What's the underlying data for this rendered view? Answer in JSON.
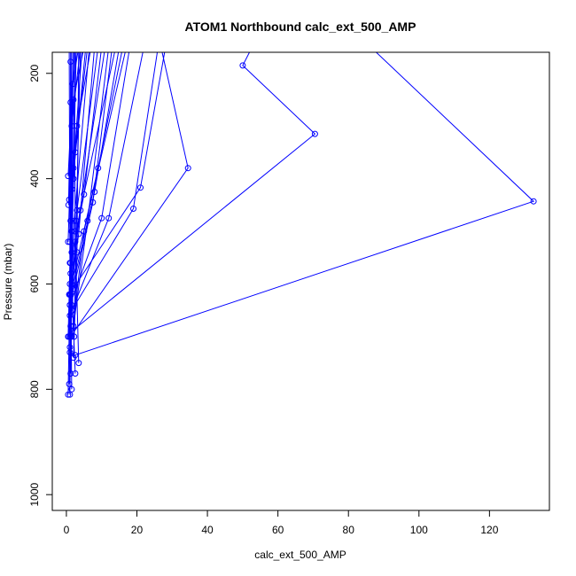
{
  "chart_data": {
    "type": "line",
    "title": "ATOM1 Northbound calc_ext_500_AMP",
    "xlabel": "calc_ext_500_AMP",
    "ylabel": "Pressure (mbar)",
    "xlim": [
      -4,
      137
    ],
    "ylim": [
      1030,
      160
    ],
    "y_reversed": true,
    "x_ticks": [
      0,
      20,
      40,
      60,
      80,
      100,
      120
    ],
    "y_ticks": [
      200,
      400,
      600,
      800,
      1000
    ],
    "grid": false,
    "line_color": "#0000ff",
    "marker": "open-circle",
    "series": [
      {
        "x": [
          2.5,
          132.5,
          80,
          65
        ],
        "y": [
          735,
          443,
          110,
          20
        ]
      },
      {
        "x": [
          1.5,
          70.5,
          50,
          55
        ],
        "y": [
          690,
          315,
          185,
          120
        ]
      },
      {
        "x": [
          1.2,
          34.5,
          27,
          20
        ],
        "y": [
          700,
          380,
          155,
          80
        ]
      },
      {
        "x": [
          1.8,
          21,
          28,
          30
        ],
        "y": [
          610,
          417,
          155,
          80
        ]
      },
      {
        "x": [
          1.5,
          19,
          26
        ],
        "y": [
          650,
          457,
          150
        ]
      },
      {
        "x": [
          1,
          12,
          22
        ],
        "y": [
          660,
          475,
          150
        ]
      },
      {
        "x": [
          1,
          10,
          18
        ],
        "y": [
          640,
          475,
          150
        ]
      },
      {
        "x": [
          1.5,
          9,
          16
        ],
        "y": [
          600,
          380,
          150
        ]
      },
      {
        "x": [
          1.2,
          8,
          15
        ],
        "y": [
          620,
          425,
          150
        ]
      },
      {
        "x": [
          1,
          7.5,
          13
        ],
        "y": [
          640,
          445,
          150
        ]
      },
      {
        "x": [
          2,
          6,
          12
        ],
        "y": [
          680,
          480,
          150
        ]
      },
      {
        "x": [
          1.2,
          5,
          10
        ],
        "y": [
          560,
          430,
          150
        ]
      },
      {
        "x": [
          1.5,
          3.5,
          8
        ],
        "y": [
          600,
          505,
          150
        ]
      },
      {
        "x": [
          1,
          3,
          7
        ],
        "y": [
          520,
          300,
          150
        ]
      },
      {
        "x": [
          1.2,
          2.5,
          6
        ],
        "y": [
          480,
          350,
          150
        ]
      },
      {
        "x": [
          0.8,
          2,
          5
        ],
        "y": [
          440,
          250,
          150
        ]
      },
      {
        "x": [
          0.5,
          1.5,
          4
        ],
        "y": [
          520,
          300,
          150
        ]
      },
      {
        "x": [
          0.5,
          1.8,
          3.5
        ],
        "y": [
          395,
          220,
          150
        ]
      },
      {
        "x": [
          0.6,
          1.2,
          3
        ],
        "y": [
          450,
          255,
          150
        ]
      },
      {
        "x": [
          1,
          1.5,
          2.5
        ],
        "y": [
          810,
          500,
          150
        ]
      },
      {
        "x": [
          0.5,
          1,
          2
        ],
        "y": [
          810,
          600,
          150
        ]
      },
      {
        "x": [
          1.5,
          1.2,
          1.5
        ],
        "y": [
          800,
          580,
          150
        ]
      },
      {
        "x": [
          0.8,
          1,
          1.2
        ],
        "y": [
          790,
          700,
          150
        ]
      },
      {
        "x": [
          1.2,
          1.5,
          1.2
        ],
        "y": [
          770,
          640,
          178
        ]
      },
      {
        "x": [
          2.5,
          1.8,
          1.5
        ],
        "y": [
          770,
          650,
          150
        ]
      },
      {
        "x": [
          3.5,
          2.5,
          2.2
        ],
        "y": [
          750,
          500,
          150
        ]
      },
      {
        "x": [
          1,
          2,
          2.8
        ],
        "y": [
          720,
          400,
          150
        ]
      },
      {
        "x": [
          2,
          3,
          3.5
        ],
        "y": [
          740,
          540,
          150
        ]
      },
      {
        "x": [
          0.5,
          1,
          0.8
        ],
        "y": [
          700,
          560,
          150
        ]
      },
      {
        "x": [
          2.2,
          2.8,
          4
        ],
        "y": [
          700,
          480,
          150
        ]
      },
      {
        "x": [
          1.5,
          2,
          4.5
        ],
        "y": [
          540,
          380,
          150
        ]
      },
      {
        "x": [
          0.8,
          1.6,
          5.5
        ],
        "y": [
          620,
          420,
          150
        ]
      },
      {
        "x": [
          1,
          2.2,
          6.5
        ],
        "y": [
          730,
          480,
          150
        ]
      },
      {
        "x": [
          1.2,
          3,
          9
        ],
        "y": [
          680,
          460,
          150
        ]
      },
      {
        "x": [
          0.6,
          2.5,
          11
        ],
        "y": [
          700,
          520,
          150
        ]
      },
      {
        "x": [
          1,
          4,
          14
        ],
        "y": [
          620,
          460,
          150
        ]
      },
      {
        "x": [
          1.5,
          5,
          17
        ],
        "y": [
          700,
          500,
          150
        ]
      }
    ]
  }
}
